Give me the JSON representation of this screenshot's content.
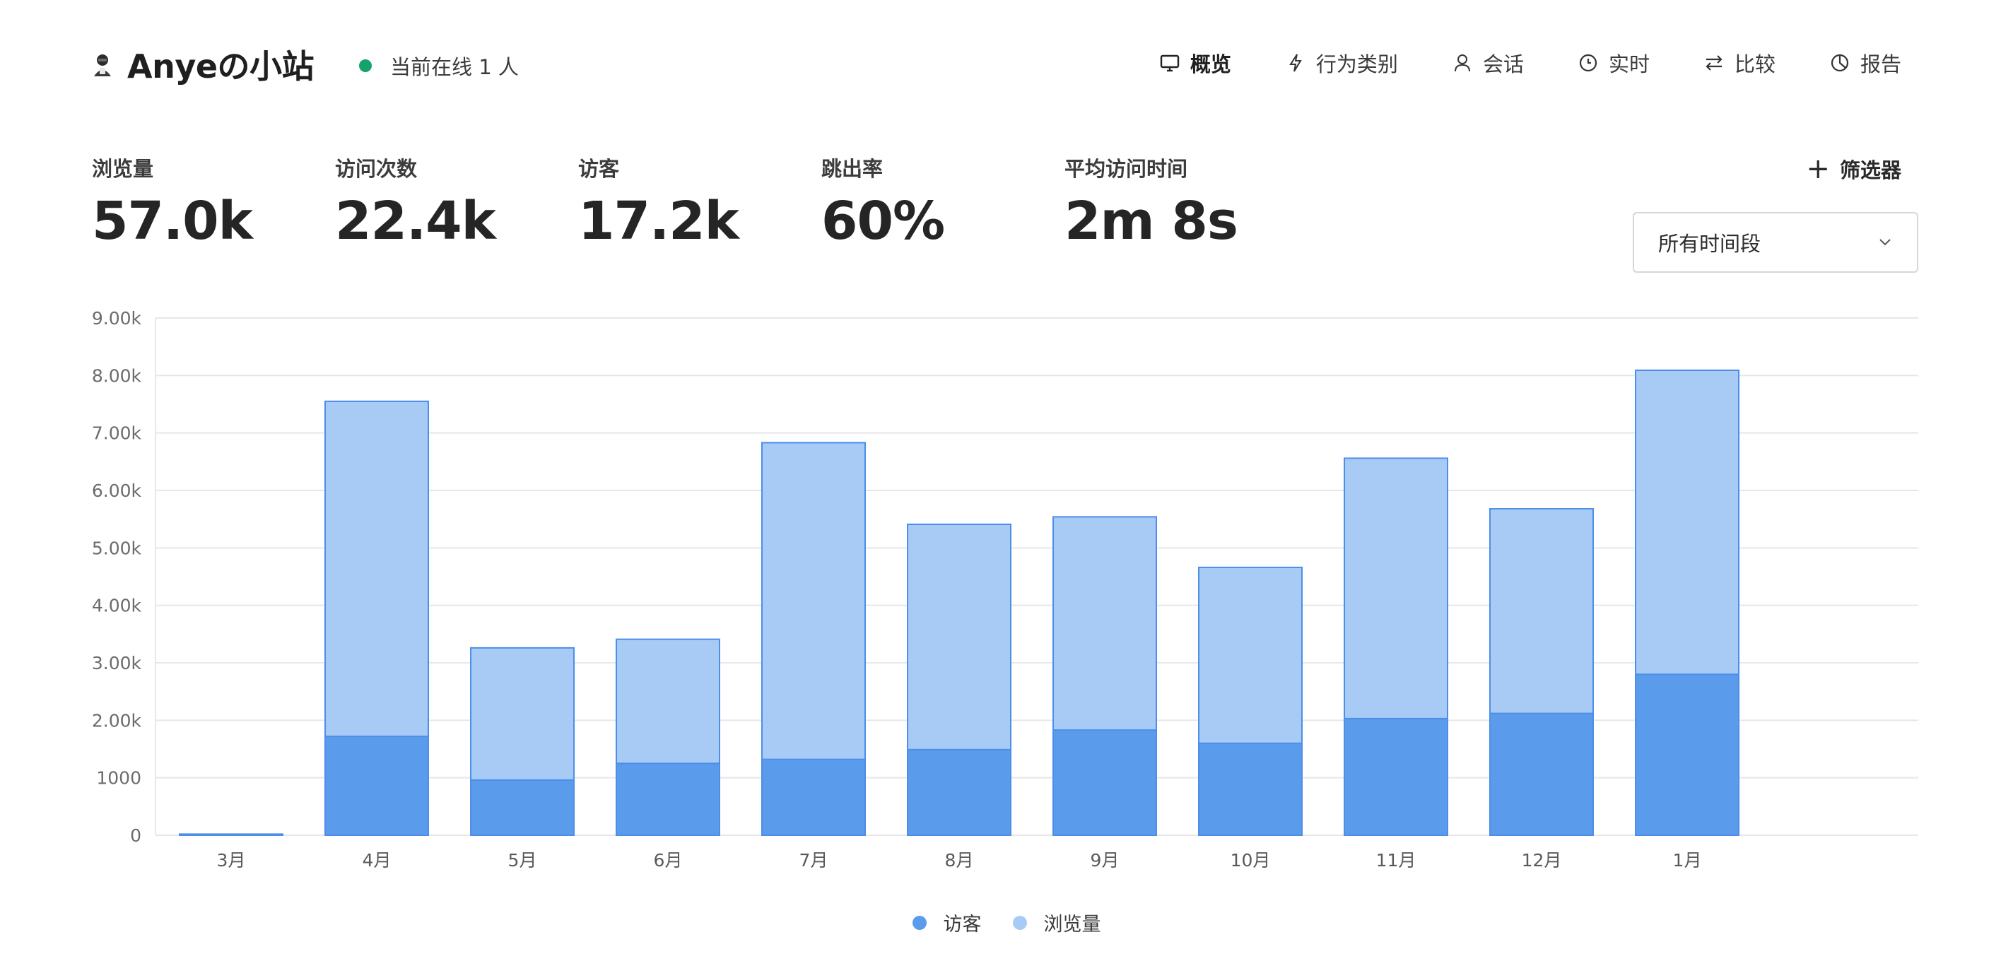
{
  "site": {
    "title": "Anyeの小站",
    "online_text": "当前在线 1 人"
  },
  "nav": [
    {
      "label": "概览",
      "icon": "monitor-icon",
      "active": true
    },
    {
      "label": "行为类别",
      "icon": "lightning-icon",
      "active": false
    },
    {
      "label": "会话",
      "icon": "user-icon",
      "active": false
    },
    {
      "label": "实时",
      "icon": "clock-icon",
      "active": false
    },
    {
      "label": "比较",
      "icon": "swap-icon",
      "active": false
    },
    {
      "label": "报告",
      "icon": "pie-chart-icon",
      "active": false
    }
  ],
  "metrics": [
    {
      "label": "浏览量",
      "value": "57.0k"
    },
    {
      "label": "访问次数",
      "value": "22.4k"
    },
    {
      "label": "访客",
      "value": "17.2k"
    },
    {
      "label": "跳出率",
      "value": "60%"
    },
    {
      "label": "平均访问时间",
      "value": "2m 8s"
    }
  ],
  "filter": {
    "label": "筛选器"
  },
  "time_range": {
    "selected": "所有时间段"
  },
  "colors": {
    "visitors": "#5a9bec",
    "pageviews": "#a8cbf6",
    "online": "#15a36b",
    "border": "#4d8ee8"
  },
  "chart_data": {
    "type": "bar",
    "stacked": "overlay",
    "categories": [
      "3月",
      "4月",
      "5月",
      "6月",
      "7月",
      "8月",
      "9月",
      "10月",
      "11月",
      "12月",
      "1月"
    ],
    "series": [
      {
        "name": "访客",
        "values": [
          10,
          1720,
          960,
          1250,
          1320,
          1490,
          1830,
          1600,
          2030,
          2120,
          2800
        ]
      },
      {
        "name": "浏览量",
        "values": [
          20,
          7550,
          3260,
          3410,
          6830,
          5410,
          5540,
          4660,
          6560,
          5680,
          8090
        ]
      }
    ],
    "ylim": [
      0,
      9000
    ],
    "yticks": [
      "0",
      "1000",
      "2.00k",
      "3.00k",
      "4.00k",
      "5.00k",
      "6.00k",
      "7.00k",
      "8.00k",
      "9.00k"
    ],
    "grid": true,
    "legend": "bottom-center",
    "legend_entries": [
      "访客",
      "浏览量"
    ]
  }
}
